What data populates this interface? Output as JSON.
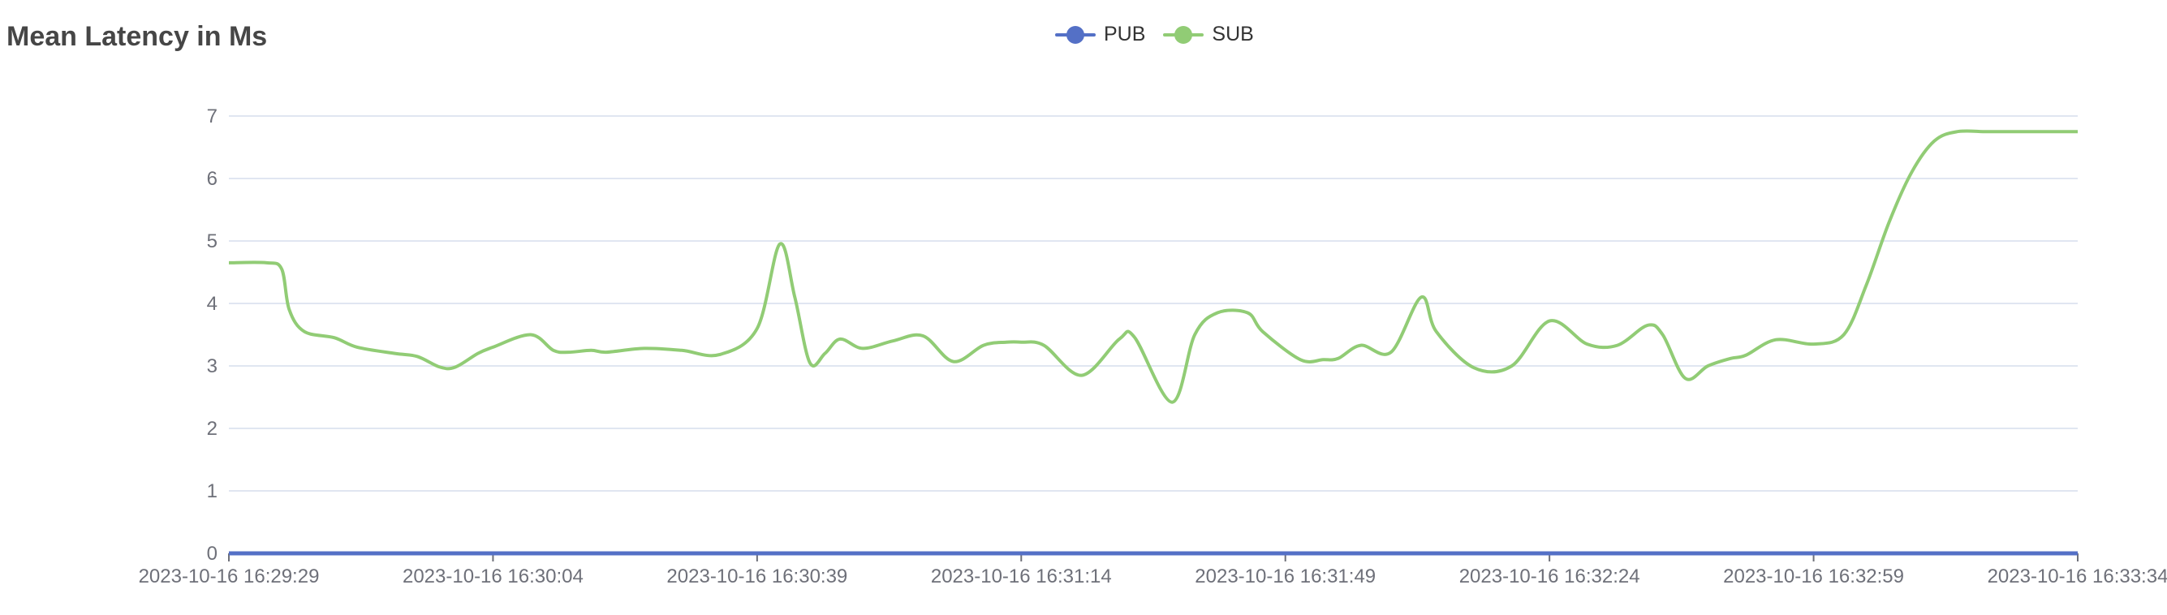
{
  "chart_data": {
    "type": "line",
    "title": "Mean Latency in Ms",
    "xlabel": "",
    "ylabel": "",
    "ylim": [
      0,
      7
    ],
    "yticks": [
      0,
      1,
      2,
      3,
      4,
      5,
      6,
      7
    ],
    "x_tick_labels": [
      "2023-10-16 16:29:29",
      "2023-10-16 16:30:04",
      "2023-10-16 16:30:39",
      "2023-10-16 16:31:14",
      "2023-10-16 16:31:49",
      "2023-10-16 16:32:24",
      "2023-10-16 16:32:59",
      "2023-10-16 16:33:34"
    ],
    "x_range_seconds": [
      0,
      245
    ],
    "grid": true,
    "legend_position": "top-center",
    "series": [
      {
        "name": "PUB",
        "color": "#5470c6",
        "x": [
          0,
          245
        ],
        "values": [
          0,
          0
        ]
      },
      {
        "name": "SUB",
        "color": "#91cc75",
        "x": [
          0,
          5,
          7,
          8,
          10,
          14,
          17,
          22,
          25,
          28,
          30,
          33,
          35,
          40,
          43,
          45,
          48,
          50,
          55,
          60,
          65,
          70,
          73,
          75,
          77,
          79,
          81,
          84,
          88,
          92,
          96,
          100,
          103,
          105,
          108,
          113,
          118,
          120,
          125,
          128,
          131,
          135,
          137,
          142,
          145,
          147,
          150,
          154,
          158,
          160,
          165,
          170,
          175,
          180,
          184,
          188,
          190,
          193,
          196,
          199,
          201,
          205,
          210,
          214,
          217,
          220,
          223,
          226,
          229,
          233,
          237,
          240,
          242,
          243,
          244,
          245
        ],
        "values": [
          4.65,
          4.65,
          4.55,
          3.9,
          3.55,
          3.45,
          3.3,
          3.2,
          3.15,
          2.98,
          2.98,
          3.2,
          3.3,
          3.5,
          3.25,
          3.22,
          3.25,
          3.22,
          3.28,
          3.25,
          3.18,
          3.6,
          4.95,
          4.1,
          3.05,
          3.2,
          3.43,
          3.28,
          3.4,
          3.48,
          3.07,
          3.33,
          3.38,
          3.38,
          3.33,
          2.85,
          3.43,
          3.46,
          2.42,
          3.5,
          3.85,
          3.85,
          3.55,
          3.1,
          3.1,
          3.12,
          3.33,
          3.22,
          4.1,
          3.55,
          2.97,
          3.0,
          3.72,
          3.35,
          3.33,
          3.65,
          3.5,
          2.8,
          3.0,
          3.12,
          3.17,
          3.42,
          3.35,
          3.5,
          4.3,
          5.3,
          6.1,
          6.6,
          6.75,
          6.75,
          6.75,
          6.75,
          6.75,
          6.75,
          6.75,
          6.75
        ]
      }
    ]
  }
}
